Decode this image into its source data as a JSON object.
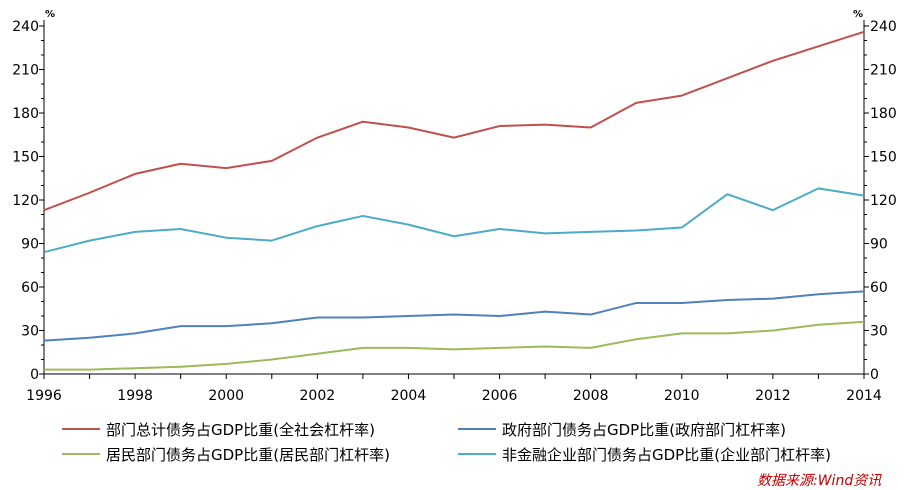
{
  "chart_data": {
    "type": "line",
    "title": "",
    "unit_left": "%",
    "unit_right": "%",
    "xlabel": "",
    "ylabel": "",
    "x": [
      1996,
      1997,
      1998,
      1999,
      2000,
      2001,
      2002,
      2003,
      2004,
      2005,
      2006,
      2007,
      2008,
      2009,
      2010,
      2011,
      2012,
      2013,
      2014
    ],
    "x_ticks": [
      "1996",
      "1998",
      "2000",
      "2002",
      "2004",
      "2006",
      "2008",
      "2010",
      "2012",
      "2014"
    ],
    "xlim": [
      1996,
      2014
    ],
    "ylim": [
      0,
      240
    ],
    "y_ticks": [
      "0",
      "30",
      "60",
      "90",
      "120",
      "150",
      "180",
      "210",
      "240"
    ],
    "grid": false,
    "legend_position": "bottom",
    "series": [
      {
        "name": "部门总计债务占GDP比重(全社会杠杆率)",
        "color": "#c0504d",
        "values": [
          113,
          125,
          138,
          145,
          142,
          147,
          163,
          174,
          170,
          163,
          171,
          172,
          170,
          187,
          192,
          204,
          216,
          226,
          236
        ]
      },
      {
        "name": "政府部门债务占GDP比重(政府部门杠杆率)",
        "color": "#4f81bd",
        "values": [
          23,
          25,
          28,
          33,
          33,
          35,
          39,
          39,
          40,
          41,
          40,
          43,
          41,
          49,
          49,
          51,
          52,
          55,
          57
        ]
      },
      {
        "name": "居民部门债务占GDP比重(居民部门杠杆率)",
        "color": "#9bbb59",
        "values": [
          3,
          3,
          4,
          5,
          7,
          10,
          14,
          18,
          18,
          17,
          18,
          19,
          18,
          24,
          28,
          28,
          30,
          34,
          36
        ]
      },
      {
        "name": "非金融企业部门债务占GDP比重(企业部门杠杆率)",
        "color": "#4bacc6",
        "values": [
          84,
          92,
          98,
          100,
          94,
          92,
          102,
          109,
          103,
          95,
          100,
          97,
          98,
          99,
          101,
          124,
          113,
          128,
          123
        ]
      }
    ]
  },
  "source": "数据来源:Wind资讯"
}
